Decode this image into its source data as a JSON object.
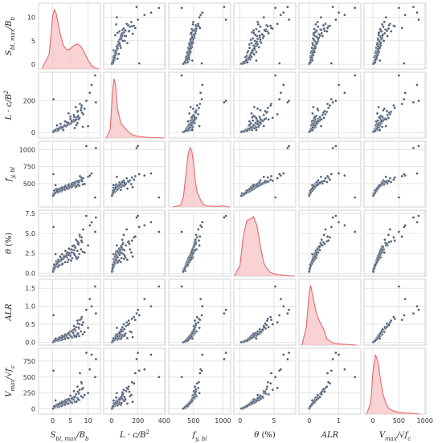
{
  "chart_data": {
    "type": "scatter",
    "kind": "pairplot",
    "grid": true,
    "colors": {
      "point": "#4b5a72",
      "kde_line": "#e4676e",
      "kde_fill": "#f7c3c5",
      "panel_bg": "#ffffff",
      "grid": "#d9d9d9"
    },
    "variables": [
      {
        "key": "S",
        "label": "S_bl,max/B_b",
        "range": [
          -4,
          13.5
        ],
        "ticks": [
          0,
          5,
          10
        ],
        "tick_labels": [
          "0",
          "5",
          "10"
        ]
      },
      {
        "key": "L",
        "label": "L·c/B²",
        "range": [
          -60,
          410
        ],
        "ticks": [
          0,
          200,
          400
        ],
        "tick_labels": [
          "0",
          "200",
          "400"
        ]
      },
      {
        "key": "F",
        "label": "f_y,bl",
        "range": [
          80,
          1130
        ],
        "ticks": [
          500,
          1000
        ],
        "tick_labels": [
          "500",
          "1000"
        ]
      },
      {
        "key": "T",
        "label": "θ (%)",
        "range": [
          -0.9,
          8.2
        ],
        "ticks": [
          0,
          5
        ],
        "tick_labels": [
          "0",
          "5"
        ]
      },
      {
        "key": "A",
        "label": "ALR",
        "range": [
          -0.35,
          1.75
        ],
        "ticks": [
          0,
          1
        ],
        "tick_labels": [
          "0",
          "1"
        ]
      },
      {
        "key": "V",
        "label": "V_max/√f_c",
        "range": [
          -170,
          1020
        ],
        "ticks": [
          0,
          500,
          1000
        ],
        "tick_labels": [
          "0",
          "500",
          "1000"
        ]
      }
    ],
    "row_ticks": {
      "S": {
        "values": [
          0,
          5,
          10
        ],
        "labels": [
          "0",
          "5",
          "10"
        ]
      },
      "L": {
        "values": [
          0,
          200
        ],
        "labels": [
          "0",
          "200"
        ]
      },
      "F": {
        "values": [
          500,
          750,
          1000
        ],
        "labels": [
          "500",
          "750",
          "1000"
        ]
      },
      "T": {
        "values": [
          0,
          2.5,
          5,
          7.5
        ],
        "labels": [
          "0.0",
          "2.5",
          "5.0",
          "7.5"
        ]
      },
      "A": {
        "values": [
          0,
          0.5,
          1,
          1.5
        ],
        "labels": [
          "0.0",
          "0.5",
          "1.0",
          "1.5"
        ]
      },
      "V": {
        "values": [
          0,
          250,
          500,
          750
        ],
        "labels": [
          "0",
          "250",
          "500",
          "750"
        ]
      }
    },
    "row_ranges": {
      "S": [
        -1,
        13
      ],
      "L": [
        -35,
        380
      ],
      "F": [
        160,
        1120
      ],
      "T": [
        -0.35,
        7.9
      ],
      "A": [
        -0.08,
        1.75
      ],
      "V": [
        -80,
        950
      ]
    },
    "kde": {
      "S": [
        [
          -3,
          0.01
        ],
        [
          -1,
          0.25
        ],
        [
          0,
          0.9
        ],
        [
          0.5,
          1.0
        ],
        [
          1,
          0.93
        ],
        [
          2,
          0.62
        ],
        [
          3,
          0.4
        ],
        [
          4,
          0.32
        ],
        [
          5,
          0.34
        ],
        [
          6,
          0.4
        ],
        [
          7,
          0.42
        ],
        [
          8,
          0.38
        ],
        [
          9,
          0.27
        ],
        [
          10,
          0.15
        ],
        [
          11,
          0.06
        ],
        [
          12,
          0.02
        ],
        [
          13,
          0.0
        ]
      ],
      "L": [
        [
          -40,
          0.0
        ],
        [
          -10,
          0.15
        ],
        [
          5,
          0.7
        ],
        [
          18,
          1.0
        ],
        [
          30,
          0.9
        ],
        [
          45,
          0.5
        ],
        [
          70,
          0.25
        ],
        [
          100,
          0.17
        ],
        [
          130,
          0.1
        ],
        [
          160,
          0.05
        ],
        [
          200,
          0.03
        ],
        [
          250,
          0.015
        ],
        [
          300,
          0.01
        ],
        [
          360,
          0.005
        ],
        [
          400,
          0.0
        ]
      ],
      "F": [
        [
          150,
          0.0
        ],
        [
          280,
          0.03
        ],
        [
          330,
          0.18
        ],
        [
          370,
          0.55
        ],
        [
          410,
          0.9
        ],
        [
          440,
          1.0
        ],
        [
          470,
          0.95
        ],
        [
          500,
          0.75
        ],
        [
          530,
          0.45
        ],
        [
          560,
          0.25
        ],
        [
          590,
          0.19
        ],
        [
          620,
          0.12
        ],
        [
          660,
          0.05
        ],
        [
          720,
          0.02
        ],
        [
          800,
          0.015
        ],
        [
          900,
          0.01
        ],
        [
          1000,
          0.02
        ],
        [
          1070,
          0.005
        ],
        [
          1120,
          0.0
        ]
      ],
      "T": [
        [
          -0.8,
          0.0
        ],
        [
          0,
          0.18
        ],
        [
          0.5,
          0.68
        ],
        [
          1,
          0.93
        ],
        [
          1.5,
          0.96
        ],
        [
          2,
          1.0
        ],
        [
          2.5,
          0.85
        ],
        [
          3,
          0.5
        ],
        [
          3.5,
          0.22
        ],
        [
          4,
          0.12
        ],
        [
          4.5,
          0.06
        ],
        [
          5,
          0.04
        ],
        [
          6,
          0.02
        ],
        [
          7,
          0.005
        ],
        [
          8,
          0.0
        ]
      ],
      "A": [
        [
          -0.25,
          0.0
        ],
        [
          -0.1,
          0.3
        ],
        [
          0,
          0.9
        ],
        [
          0.05,
          1.0
        ],
        [
          0.15,
          0.75
        ],
        [
          0.25,
          0.52
        ],
        [
          0.35,
          0.4
        ],
        [
          0.5,
          0.25
        ],
        [
          0.6,
          0.1
        ],
        [
          0.8,
          0.04
        ],
        [
          1,
          0.02
        ],
        [
          1.3,
          0.01
        ],
        [
          1.6,
          0.0
        ]
      ],
      "V": [
        [
          -120,
          0.0
        ],
        [
          -40,
          0.2
        ],
        [
          0,
          0.7
        ],
        [
          50,
          1.0
        ],
        [
          100,
          0.88
        ],
        [
          150,
          0.55
        ],
        [
          200,
          0.32
        ],
        [
          250,
          0.18
        ],
        [
          300,
          0.1
        ],
        [
          400,
          0.05
        ],
        [
          500,
          0.03
        ],
        [
          600,
          0.02
        ],
        [
          700,
          0.015
        ],
        [
          800,
          0.01
        ],
        [
          900,
          0.0
        ]
      ]
    },
    "points": {
      "S": [
        1.0,
        2.0,
        4.0,
        6.0,
        8.0,
        1.0,
        3.0,
        5.0,
        7.0,
        10.0,
        0.5,
        1.5,
        2.5,
        3.5,
        4.5,
        6.5,
        7.5,
        8.5,
        0.2,
        0.8,
        1.2,
        2.2,
        5.5,
        6.2,
        9.0,
        0.5,
        1.0,
        3.0,
        4.0,
        5.0,
        6.0,
        7.0,
        12.0,
        0.3,
        0.6,
        1.8,
        2.8,
        4.2,
        5.2,
        6.8,
        7.2,
        8.2,
        0.1,
        0.4,
        0.9,
        1.4,
        2.4,
        3.2,
        4.8,
        5.8,
        6.4,
        7.4,
        9.5,
        0.2,
        0.7,
        1.1,
        1.6,
        2.1,
        2.6,
        3.6,
        4.6,
        5.6,
        6.6,
        7.6,
        8.6,
        10.5,
        0.3,
        1.3,
        2.3,
        3.3,
        11.0,
        12.2,
        0.6,
        1.7,
        2.7,
        3.8,
        4.3,
        5.3,
        6.3,
        7.3,
        8.3,
        0.1,
        0.5,
        0.9,
        1.2,
        1.9,
        2.9,
        3.4,
        4.4,
        5.4,
        6.1,
        7.1,
        8.1,
        0.4,
        1.5,
        2.5,
        6.7,
        7.7,
        0.2,
        0.8
      ],
      "L": [
        10,
        30,
        50,
        80,
        140,
        20,
        15,
        100,
        60,
        40,
        5,
        12,
        25,
        70,
        120,
        160,
        90,
        35,
        8,
        18,
        45,
        55,
        75,
        28,
        150,
        14,
        22,
        38,
        65,
        85,
        110,
        130,
        360,
        6,
        11,
        16,
        26,
        48,
        58,
        95,
        105,
        170,
        4,
        9,
        13,
        19,
        33,
        42,
        52,
        68,
        78,
        88,
        200,
        7,
        10,
        17,
        21,
        27,
        31,
        44,
        57,
        72,
        82,
        92,
        115,
        250,
        12,
        24,
        36,
        47,
        300,
        190,
        9,
        18,
        29,
        39,
        53,
        63,
        73,
        83,
        125,
        3,
        7,
        14,
        20,
        28,
        34,
        43,
        61,
        71,
        98,
        135,
        155,
        11,
        23,
        32,
        46,
        180,
        210,
        15
      ],
      "F": [
        380,
        420,
        460,
        500,
        550,
        400,
        440,
        480,
        520,
        600,
        350,
        370,
        390,
        410,
        430,
        450,
        470,
        490,
        360,
        395,
        415,
        435,
        455,
        475,
        495,
        405,
        425,
        445,
        465,
        485,
        505,
        525,
        300,
        340,
        365,
        385,
        408,
        428,
        448,
        468,
        488,
        560,
        330,
        355,
        375,
        398,
        418,
        438,
        458,
        478,
        498,
        518,
        1050,
        345,
        368,
        392,
        412,
        432,
        452,
        472,
        492,
        512,
        532,
        545,
        580,
        620,
        358,
        378,
        402,
        422,
        650,
        1020,
        362,
        388,
        412,
        442,
        462,
        482,
        502,
        522,
        538,
        325,
        352,
        372,
        396,
        416,
        436,
        456,
        476,
        496,
        515,
        540,
        590,
        400,
        420,
        440,
        460,
        610,
        640,
        480
      ],
      "T": [
        1.0,
        1.5,
        2.0,
        2.5,
        3.0,
        1.2,
        1.8,
        2.2,
        2.8,
        3.5,
        0.5,
        0.8,
        1.1,
        1.4,
        1.7,
        2.1,
        2.4,
        2.7,
        0.3,
        0.9,
        1.3,
        1.6,
        1.9,
        2.3,
        2.6,
        1.0,
        1.5,
        2.0,
        2.5,
        3.0,
        3.5,
        4.0,
        5.2,
        0.6,
        0.7,
        1.0,
        1.2,
        1.4,
        1.6,
        1.8,
        2.0,
        4.5,
        0.4,
        0.8,
        1.1,
        1.5,
        1.9,
        2.2,
        2.5,
        2.9,
        3.2,
        3.8,
        7.2,
        0.5,
        1.0,
        1.3,
        1.7,
        2.1,
        2.4,
        2.8,
        3.1,
        3.4,
        4.2,
        4.8,
        5.5,
        6.0,
        0.7,
        1.2,
        1.6,
        2.0,
        6.4,
        7.0,
        0.9,
        1.4,
        1.8,
        2.2,
        2.6,
        3.0,
        3.3,
        3.6,
        3.9,
        0.2,
        0.6,
        0.9,
        1.2,
        1.5,
        1.8,
        2.1,
        2.3,
        2.6,
        2.9,
        3.7,
        4.1,
        1.1,
        1.4,
        1.7,
        2.0,
        4.6,
        5.8,
        2.4
      ],
      "A": [
        0.05,
        0.1,
        0.15,
        0.2,
        0.3,
        0.08,
        0.12,
        0.18,
        0.25,
        0.4,
        0.02,
        0.04,
        0.06,
        0.09,
        0.11,
        0.14,
        0.17,
        0.22,
        0.0,
        0.03,
        0.07,
        0.1,
        0.13,
        0.16,
        0.28,
        0.05,
        0.1,
        0.15,
        0.2,
        0.3,
        0.45,
        0.6,
        1.55,
        0.01,
        0.02,
        0.05,
        0.08,
        0.12,
        0.16,
        0.2,
        0.24,
        0.7,
        0.0,
        0.03,
        0.06,
        0.09,
        0.13,
        0.17,
        0.21,
        0.26,
        0.32,
        0.38,
        0.9,
        0.01,
        0.04,
        0.07,
        0.1,
        0.14,
        0.18,
        0.22,
        0.27,
        0.33,
        0.42,
        0.5,
        0.55,
        1.2,
        0.02,
        0.06,
        0.11,
        0.15,
        1.0,
        0.8,
        0.03,
        0.08,
        0.12,
        0.19,
        0.23,
        0.29,
        0.35,
        0.41,
        0.48,
        0.0,
        0.02,
        0.05,
        0.09,
        0.13,
        0.16,
        0.2,
        0.25,
        0.3,
        0.36,
        0.52,
        0.65,
        0.04,
        0.08,
        0.12,
        0.16,
        0.62,
        0.75,
        0.1
      ],
      "V": [
        50,
        80,
        120,
        160,
        200,
        60,
        90,
        130,
        170,
        250,
        20,
        30,
        45,
        65,
        85,
        110,
        140,
        180,
        10,
        35,
        55,
        75,
        95,
        115,
        220,
        40,
        70,
        100,
        150,
        210,
        280,
        350,
        500,
        15,
        25,
        42,
        62,
        82,
        102,
        122,
        152,
        400,
        5,
        28,
        48,
        68,
        88,
        108,
        128,
        148,
        190,
        240,
        880,
        18,
        38,
        58,
        78,
        98,
        118,
        138,
        158,
        178,
        230,
        300,
        330,
        620,
        22,
        52,
        72,
        92,
        850,
        780,
        33,
        63,
        83,
        103,
        133,
        163,
        193,
        260,
        310,
        8,
        26,
        46,
        66,
        86,
        106,
        126,
        146,
        166,
        186,
        270,
        420,
        44,
        74,
        94,
        114,
        560,
        600,
        134
      ]
    }
  }
}
